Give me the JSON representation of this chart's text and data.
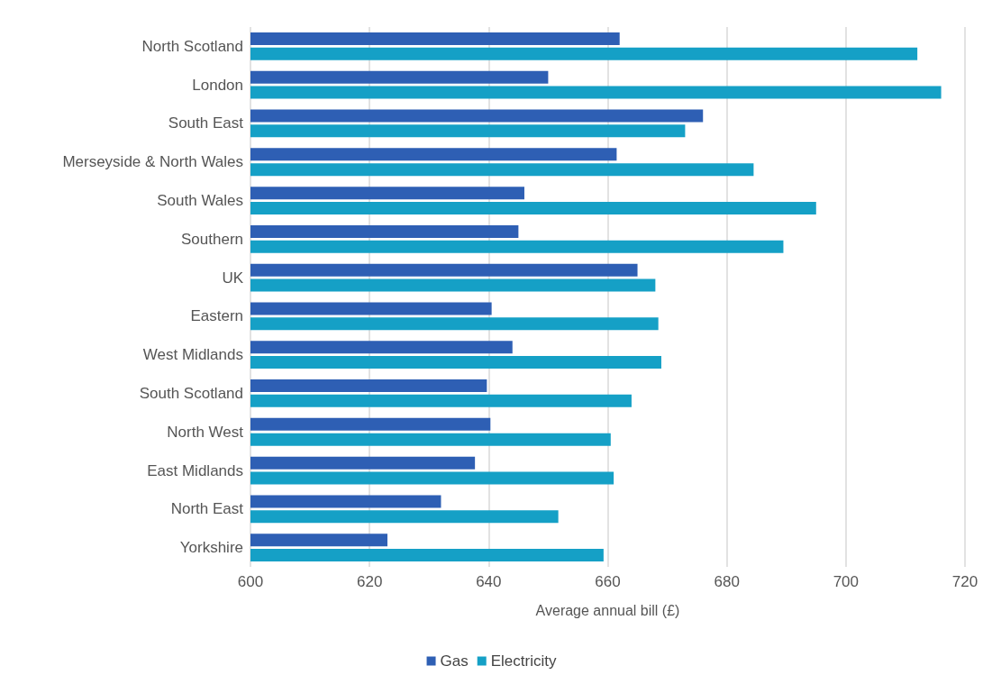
{
  "chart_data": {
    "type": "bar",
    "orientation": "horizontal",
    "xlabel": "Average annual bill (£)",
    "categories": [
      "North Scotland",
      "London",
      "South East",
      "Merseyside & North Wales",
      "South Wales",
      "Southern",
      "UK",
      "Eastern",
      "West Midlands",
      "South Scotland",
      "North West",
      "East Midlands",
      "North East",
      "Yorkshire"
    ],
    "series": [
      {
        "name": "Gas",
        "color": "#2e5fb4",
        "values": [
          662,
          650,
          676,
          661.5,
          646,
          645,
          665,
          640.5,
          644,
          639.7,
          640.3,
          637.7,
          632,
          623
        ]
      },
      {
        "name": "Electricity",
        "color": "#15a0c6",
        "values": [
          712,
          716,
          673,
          684.5,
          695,
          689.5,
          668,
          668.5,
          669,
          664,
          660.5,
          661,
          651.7,
          659.3
        ]
      }
    ],
    "xlim": [
      600,
      720
    ],
    "xticks": [
      600,
      620,
      640,
      660,
      680,
      700,
      720
    ],
    "grid": "x",
    "legend": "bottom"
  }
}
